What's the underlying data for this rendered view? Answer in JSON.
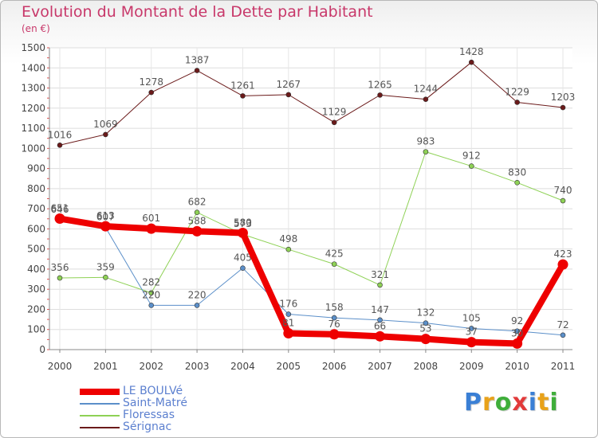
{
  "chart_data": {
    "type": "line",
    "title": "Evolution du Montant de la Dette par Habitant",
    "subtitle": "(en €)",
    "x": [
      "2000",
      "2001",
      "2002",
      "2003",
      "2004",
      "2005",
      "2006",
      "2007",
      "2008",
      "2009",
      "2010",
      "2011"
    ],
    "ylim": [
      0,
      1500
    ],
    "yticks": [
      0,
      100,
      200,
      300,
      400,
      500,
      600,
      700,
      800,
      900,
      1000,
      1100,
      1200,
      1300,
      1400,
      1500
    ],
    "grid": true,
    "legend_position": "bottom-left",
    "series": [
      {
        "name": "Sérignac",
        "color": "#6b1a1a",
        "width": 1,
        "values": [
          1016,
          1069,
          1278,
          1387,
          1261,
          1267,
          1129,
          1265,
          1244,
          1428,
          1229,
          1203
        ]
      },
      {
        "name": "Floressas",
        "color": "#8ed155",
        "width": 1,
        "values": [
          356,
          359,
          282,
          682,
          573,
          498,
          425,
          321,
          983,
          912,
          830,
          740
        ]
      },
      {
        "name": "Saint-Matré",
        "color": "#5b8fc9",
        "width": 1,
        "values": [
          646,
          607,
          220,
          220,
          405,
          176,
          158,
          147,
          132,
          105,
          92,
          72
        ]
      },
      {
        "name": "LE BOULVé",
        "color": "#ee0000",
        "width": 8,
        "values": [
          651,
          613,
          601,
          588,
          580,
          81,
          76,
          66,
          53,
          37,
          30,
          423
        ]
      }
    ]
  },
  "logo": {
    "letters": [
      {
        "ch": "P",
        "color": "#3a7fd5"
      },
      {
        "ch": "r",
        "color": "#e8a21a"
      },
      {
        "ch": "o",
        "color": "#3fae3a"
      },
      {
        "ch": "x",
        "color": "#e23a3a"
      },
      {
        "ch": "i",
        "color": "#3a7fd5"
      },
      {
        "ch": "t",
        "color": "#e8a21a"
      },
      {
        "ch": "i",
        "color": "#3fae3a"
      }
    ]
  }
}
